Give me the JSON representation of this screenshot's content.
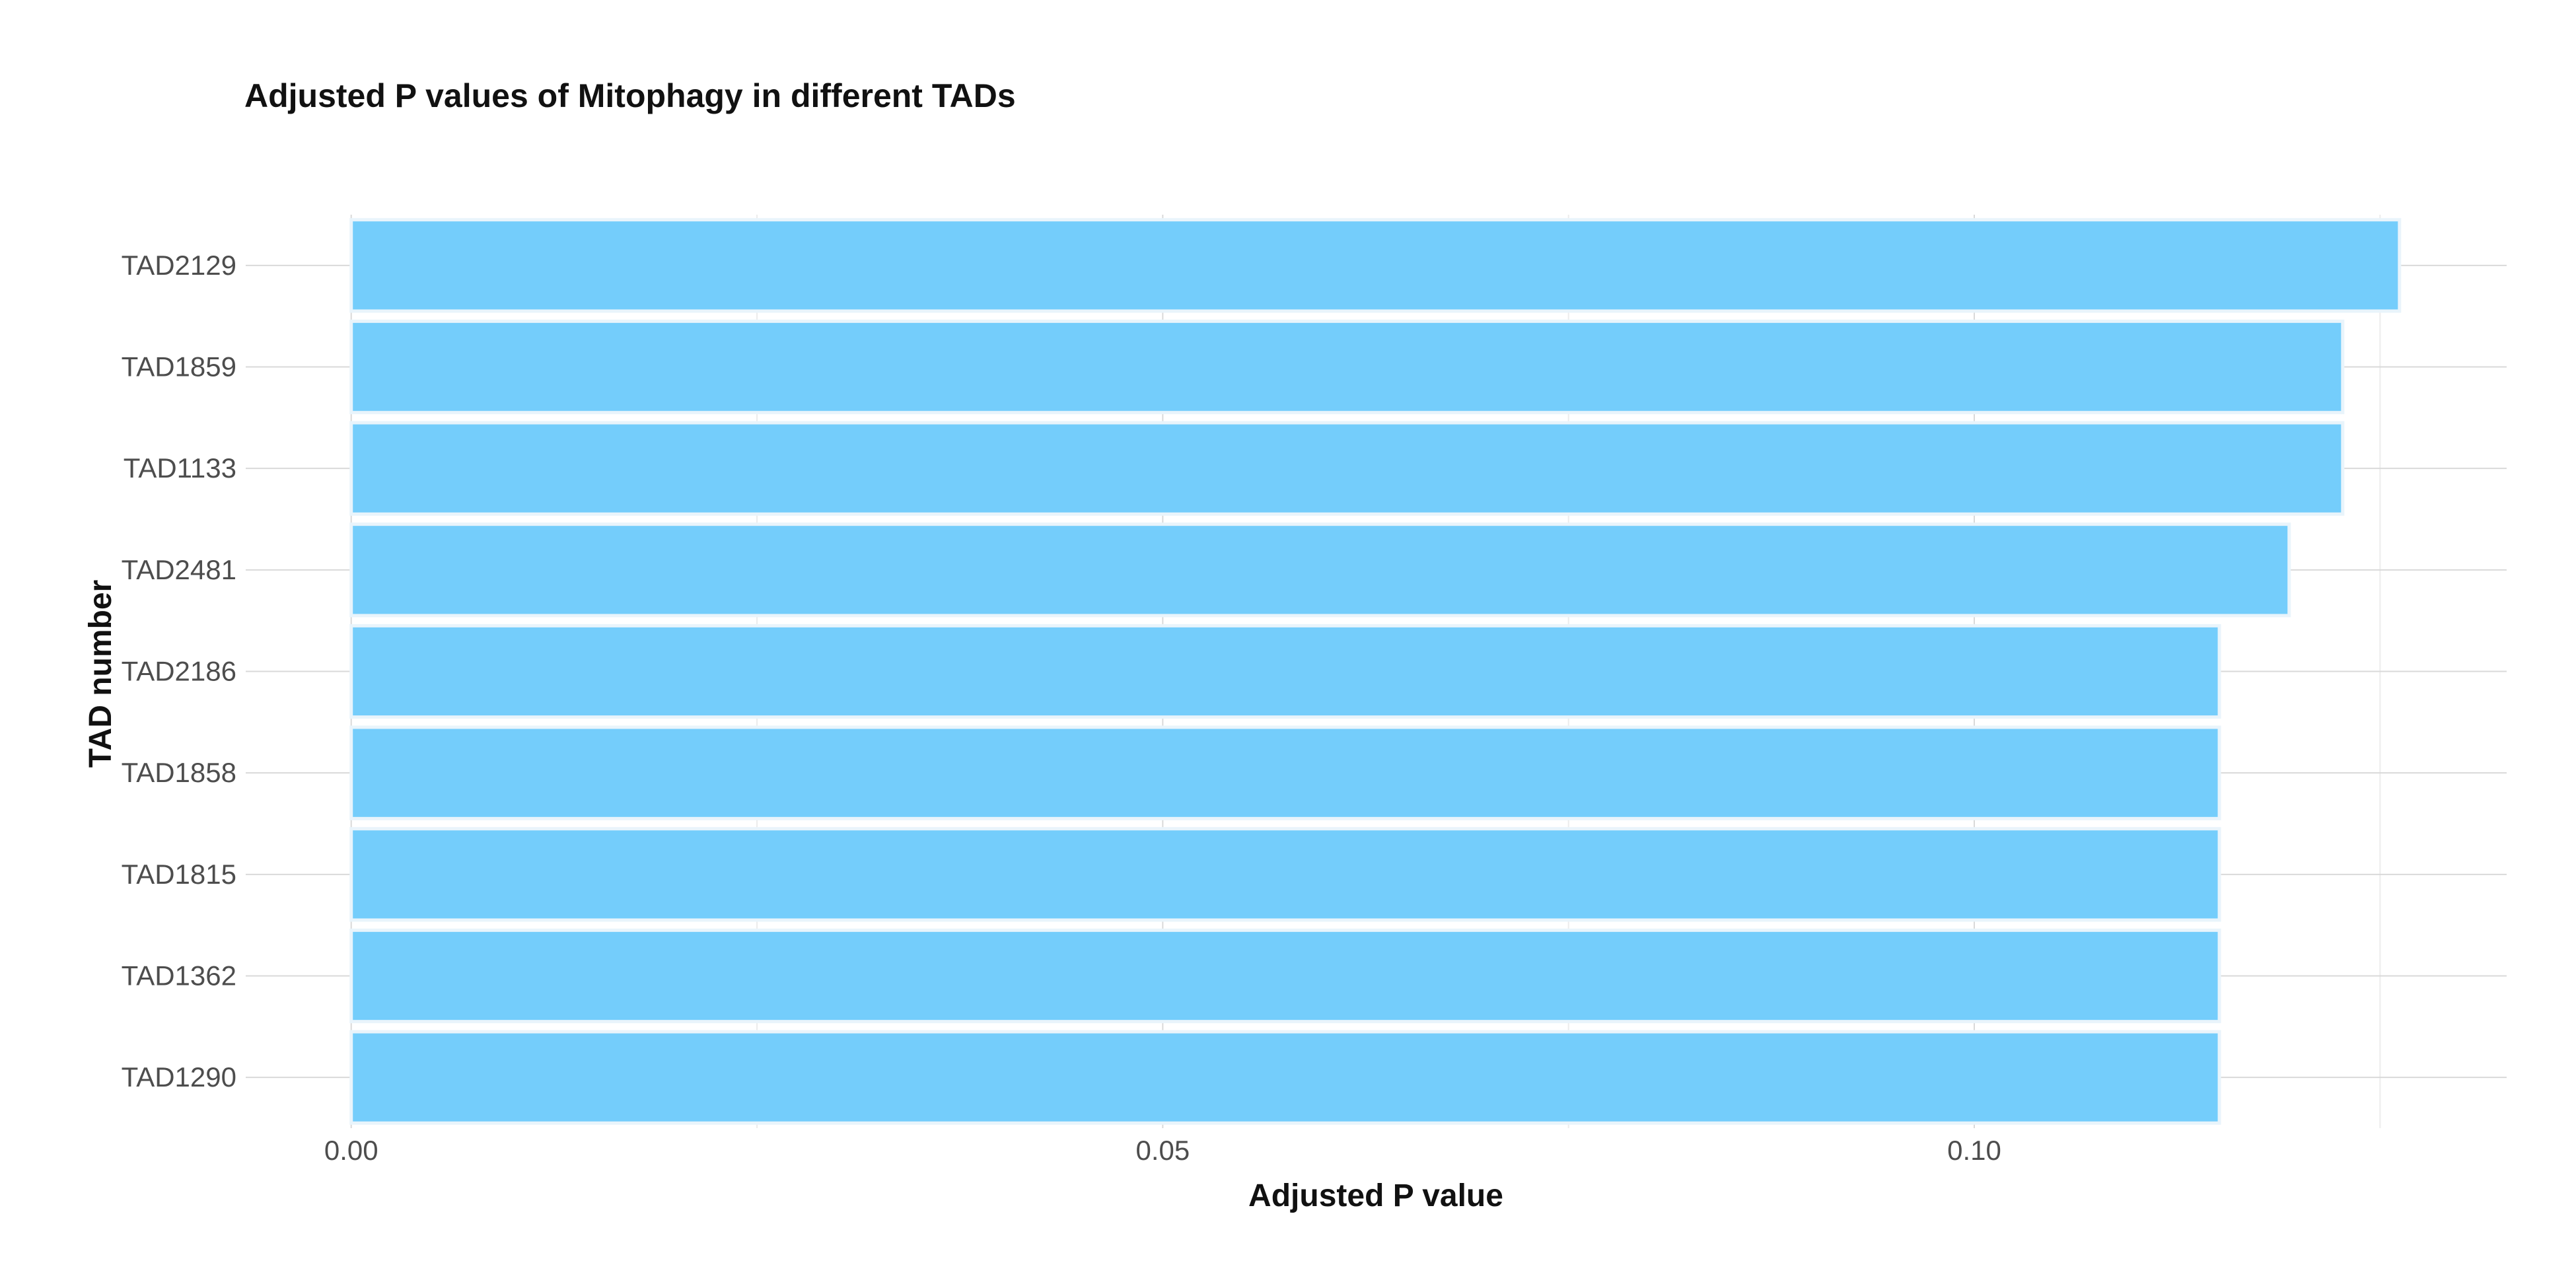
{
  "chart_data": {
    "type": "bar",
    "orientation": "horizontal",
    "title": "Adjusted P values of Mitophagy in different TADs",
    "xlabel": "Adjusted P value",
    "ylabel": "TAD number",
    "categories": [
      "TAD2129",
      "TAD1859",
      "TAD1133",
      "TAD2481",
      "TAD2186",
      "TAD1858",
      "TAD1815",
      "TAD1362",
      "TAD1290"
    ],
    "values": [
      0.1262,
      0.1227,
      0.1227,
      0.1194,
      0.1151,
      0.1151,
      0.1151,
      0.1151,
      0.1151
    ],
    "xlim": [
      -0.0065,
      0.1328
    ],
    "x_ticks": [
      0.0,
      0.05,
      0.1
    ],
    "x_tick_labels": [
      "0.00",
      "0.05",
      "0.10"
    ],
    "x_minor_ticks": [
      0.025,
      0.075,
      0.125
    ],
    "grid": true,
    "legend": "none",
    "bar_color": "#74cdfb",
    "bar_outline_color": "#e9f4fb"
  }
}
